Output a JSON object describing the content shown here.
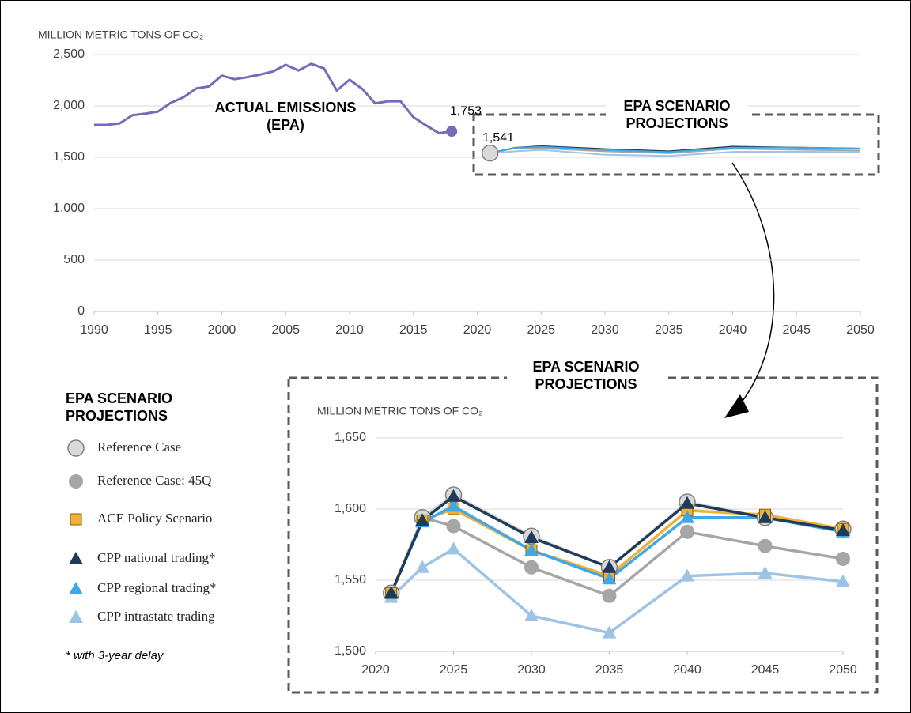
{
  "chart_data": [
    {
      "type": "line",
      "y_label": "MILLION METRIC TONS OF CO₂",
      "x": [
        1990,
        1991,
        1992,
        1993,
        1994,
        1995,
        1996,
        1997,
        1998,
        1999,
        2000,
        2001,
        2002,
        2003,
        2004,
        2005,
        2006,
        2007,
        2008,
        2009,
        2010,
        2011,
        2012,
        2013,
        2014,
        2015,
        2016,
        2017,
        2018
      ],
      "values": [
        1815,
        1815,
        1830,
        1910,
        1925,
        1945,
        2030,
        2085,
        2170,
        2190,
        2295,
        2260,
        2280,
        2305,
        2335,
        2400,
        2345,
        2410,
        2365,
        2150,
        2255,
        2165,
        2025,
        2045,
        2045,
        1890,
        1810,
        1735,
        1753
      ],
      "color": "#7b68b8",
      "xlim": [
        1990,
        2050
      ],
      "xticks": [
        1990,
        1995,
        2000,
        2005,
        2010,
        2015,
        2020,
        2025,
        2030,
        2035,
        2040,
        2045,
        2050
      ],
      "ylim": [
        0,
        2500
      ],
      "yticks": [
        0,
        500,
        {
          "value": 1000,
          "label": "1,000"
        },
        {
          "value": 1500,
          "label": "1,500"
        },
        {
          "value": 2000,
          "label": "2,000"
        },
        {
          "value": 2500,
          "label": "2,500"
        }
      ],
      "grid": true,
      "annotations": [
        "ACTUAL EMISSIONS (EPA)",
        "EPA SCENARIO PROJECTIONS",
        "1,753",
        "1,541"
      ]
    },
    {
      "type": "line",
      "title": "EPA SCENARIO PROJECTIONS",
      "y_label": "MILLION METRIC TONS OF  CO₂",
      "legend_title": "EPA SCENARIO PROJECTIONS",
      "footnote": "* with 3-year delay",
      "x": [
        2021,
        2023,
        2025,
        2030,
        2035,
        2040,
        2045,
        2050
      ],
      "series": [
        {
          "name": "Reference Case",
          "color": "#d9d9d9",
          "marker": "circle-large",
          "values": [
            1541,
            1594,
            1610,
            1581,
            1559,
            1605,
            1594,
            1586
          ]
        },
        {
          "name": "Reference Case: 45Q",
          "color": "#a6a6a6",
          "marker": "circle",
          "values": [
            1541,
            1594,
            1588,
            1559,
            1539,
            1584,
            1574,
            1565
          ]
        },
        {
          "name": "ACE Policy Scenario",
          "color": "#f2b134",
          "marker": "square",
          "values": [
            1541,
            1592,
            1600,
            1571,
            1553,
            1599,
            1596,
            1586
          ]
        },
        {
          "name": "CPP national trading*",
          "color": "#1f3b5c",
          "marker": "triangle",
          "values": [
            1541,
            1592,
            1609,
            1580,
            1559,
            1604,
            1594,
            1585
          ]
        },
        {
          "name": "CPP regional trading*",
          "color": "#41a8e8",
          "marker": "triangle",
          "values": [
            1541,
            1591,
            1602,
            1571,
            1551,
            1594,
            1594,
            1584
          ]
        },
        {
          "name": "CPP intrastate trading",
          "color": "#9dc3e6",
          "marker": "triangle",
          "values": [
            1538,
            1559,
            1572,
            1525,
            1513,
            1553,
            1555,
            1549
          ]
        }
      ],
      "xlim": [
        2020,
        2050
      ],
      "xticks": [
        2020,
        2025,
        2030,
        2035,
        2040,
        2045,
        2050
      ],
      "ylim": [
        1500,
        1650
      ],
      "yticks": [
        {
          "value": 1500,
          "label": "1,500"
        },
        {
          "value": 1550,
          "label": "1,550"
        },
        {
          "value": 1600,
          "label": "1,600"
        },
        {
          "value": 1650,
          "label": "1,650"
        }
      ],
      "grid": true
    }
  ]
}
